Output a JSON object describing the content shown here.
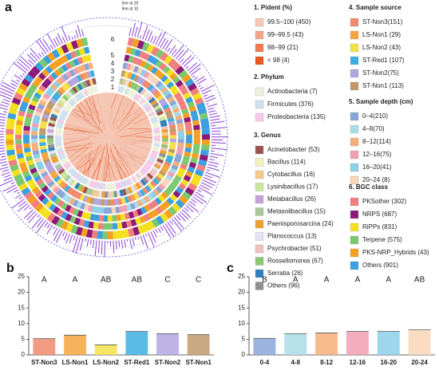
{
  "panel_a": {
    "label": "a",
    "ring_labels": [
      "1",
      "2",
      "3",
      "4",
      "5",
      "6"
    ],
    "guide_labels": [
      "line at 20",
      "line at 10"
    ],
    "legends": [
      {
        "title": "1. Pident (%)",
        "items": [
          {
            "label": "99.5–100 (450)",
            "color": "#f6c7b4"
          },
          {
            "label": "99–99.5 (43)",
            "color": "#f3a587"
          },
          {
            "label": "98–99 (21)",
            "color": "#ee7a4e"
          },
          {
            "label": "< 98 (4)",
            "color": "#e8571b"
          }
        ]
      },
      {
        "title": "2. Phylum",
        "items": [
          {
            "label": "Actinobacteria (7)",
            "color": "#eef2dc"
          },
          {
            "label": "Firmicutes (376)",
            "color": "#cfe1ef"
          },
          {
            "label": "Proteobacteria (135)",
            "color": "#f5c9ea"
          }
        ]
      },
      {
        "title": "3. Genus",
        "items": [
          {
            "label": "Acinetobacter (53)",
            "color": "#9e514c"
          },
          {
            "label": "Bacillus (114)",
            "color": "#f4efbf"
          },
          {
            "label": "Cytobacillus (16)",
            "color": "#f4c98a"
          },
          {
            "label": "Lysinibacillus (17)",
            "color": "#c9e6a0"
          },
          {
            "label": "Metabacillus (26)",
            "color": "#c7a2d8"
          },
          {
            "label": "Metasolibacillus (15)",
            "color": "#a9c89a"
          },
          {
            "label": "Paenisporosarcina (24)",
            "color": "#ef9f2f"
          },
          {
            "label": "Planococcus (13)",
            "color": "#e2e2f2"
          },
          {
            "label": "Psychrobacter (51)",
            "color": "#f2c1c1"
          },
          {
            "label": "Rossellomorea (67)",
            "color": "#8bc86f"
          },
          {
            "label": "Serratia (26)",
            "color": "#2f7fc0"
          },
          {
            "label": "Others (96)",
            "color": "#909090"
          }
        ]
      },
      {
        "title": "4. Sample source",
        "items": [
          {
            "label": "ST-Non3(151)",
            "color": "#f08a6c"
          },
          {
            "label": "LS-Non1 (29)",
            "color": "#f5a540"
          },
          {
            "label": "LS-Non2 (43)",
            "color": "#f5e04a"
          },
          {
            "label": "ST-Red1 (107)",
            "color": "#3db0e0"
          },
          {
            "label": "ST-Non2(75)",
            "color": "#b3a6e0"
          },
          {
            "label": "ST-Non1 (113)",
            "color": "#c09a6c"
          }
        ]
      },
      {
        "title": "5. Sample depth (cm)",
        "items": [
          {
            "label": "0–4(210)",
            "color": "#8aa6d8"
          },
          {
            "label": "4–8(70)",
            "color": "#a9dce8"
          },
          {
            "label": "8–12(114)",
            "color": "#f5b07a"
          },
          {
            "label": "12–16(75)",
            "color": "#f0a0b0"
          },
          {
            "label": "16–20(41)",
            "color": "#8cd0e8"
          },
          {
            "label": "20–24 (8)",
            "color": "#f9d6b8"
          }
        ]
      },
      {
        "title": "6. BGC class",
        "items": [
          {
            "label": "PKSother (302)",
            "color": "#f08080"
          },
          {
            "label": "NRPS (687)",
            "color": "#8b1a7a"
          },
          {
            "label": "RiPPs (831)",
            "color": "#f5e020"
          },
          {
            "label": "Terpene (575)",
            "color": "#7cc870"
          },
          {
            "label": "PKS-NRP_Hybrids (43)",
            "color": "#f5a020"
          },
          {
            "label": "Others (901)",
            "color": "#3aa0e0"
          }
        ]
      }
    ]
  },
  "chart_data": [
    {
      "type": "bar",
      "panel_label": "b",
      "categories": [
        "ST-Non3",
        "LS-Non1",
        "LS-Non2",
        "ST-Red1",
        "ST-Non2",
        "ST-Non1"
      ],
      "values": [
        5.2,
        6.3,
        3.2,
        7.5,
        6.8,
        6.5
      ],
      "colors": [
        "#f08a6c",
        "#f5a540",
        "#f5e04a",
        "#3db0e0",
        "#b3a6e0",
        "#c09a6c"
      ],
      "letters": [
        "A",
        "A",
        "AB",
        "AB",
        "C",
        "C"
      ],
      "ylim": [
        0,
        25
      ],
      "yticks": [
        0,
        5,
        10,
        15,
        20,
        25
      ]
    },
    {
      "type": "bar",
      "panel_label": "c",
      "categories": [
        "0-4",
        "4-8",
        "8-12",
        "12-16",
        "16-20",
        "20-24"
      ],
      "values": [
        5.3,
        6.8,
        7,
        7.5,
        7.5,
        8
      ],
      "colors": [
        "#8aa6d8",
        "#a9dce8",
        "#f5b07a",
        "#f0a0b0",
        "#8cd0e8",
        "#f9d6b8"
      ],
      "letters": [
        "B",
        "A",
        "A",
        "A",
        "A",
        "AB"
      ],
      "ylim": [
        0,
        25
      ],
      "yticks": [
        0,
        5,
        10,
        15,
        20,
        25
      ]
    }
  ]
}
